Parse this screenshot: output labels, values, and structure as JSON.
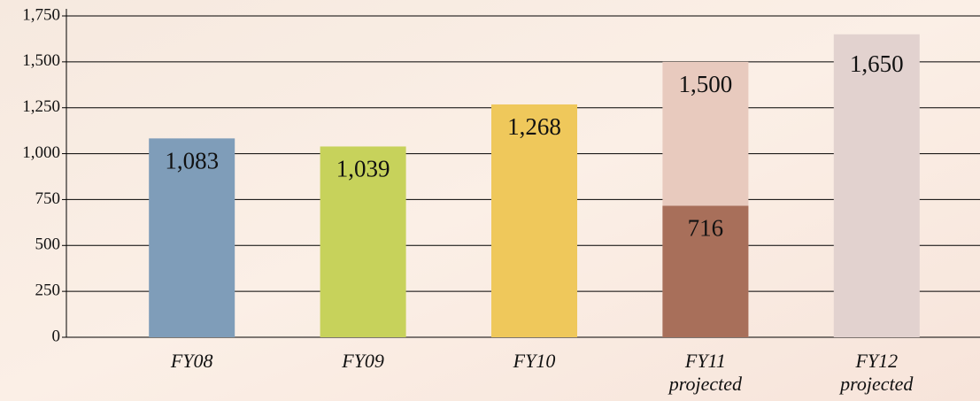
{
  "chart_data": {
    "type": "bar",
    "overlap": true,
    "categories": [
      [
        "FY08"
      ],
      [
        "FY09"
      ],
      [
        "FY10"
      ],
      [
        "FY11",
        "projected"
      ],
      [
        "FY12",
        "projected"
      ]
    ],
    "series": [
      {
        "colors": [
          "#7f9db9",
          "#c7d25b",
          "#efc85b",
          "#e8cabe",
          "#e2d2cf"
        ],
        "values": [
          1083,
          1039,
          1268,
          1500,
          1650
        ],
        "value_labels": [
          "1,083",
          "1,039",
          "1,268",
          "1,500",
          "1,650"
        ]
      },
      {
        "colors": [
          null,
          null,
          null,
          "#a86f5a",
          null
        ],
        "values": [
          null,
          null,
          null,
          716,
          null
        ],
        "value_labels": [
          null,
          null,
          null,
          "716",
          null
        ]
      }
    ],
    "ylim": [
      0,
      1750
    ],
    "yticks": [
      0,
      250,
      500,
      750,
      {
        "value": 1000,
        "label": "1,000"
      },
      {
        "value": 1250,
        "label": "1,250"
      },
      {
        "value": 1500,
        "label": "1,500"
      },
      {
        "value": 1750,
        "label": "1,750"
      }
    ],
    "grid": true
  }
}
